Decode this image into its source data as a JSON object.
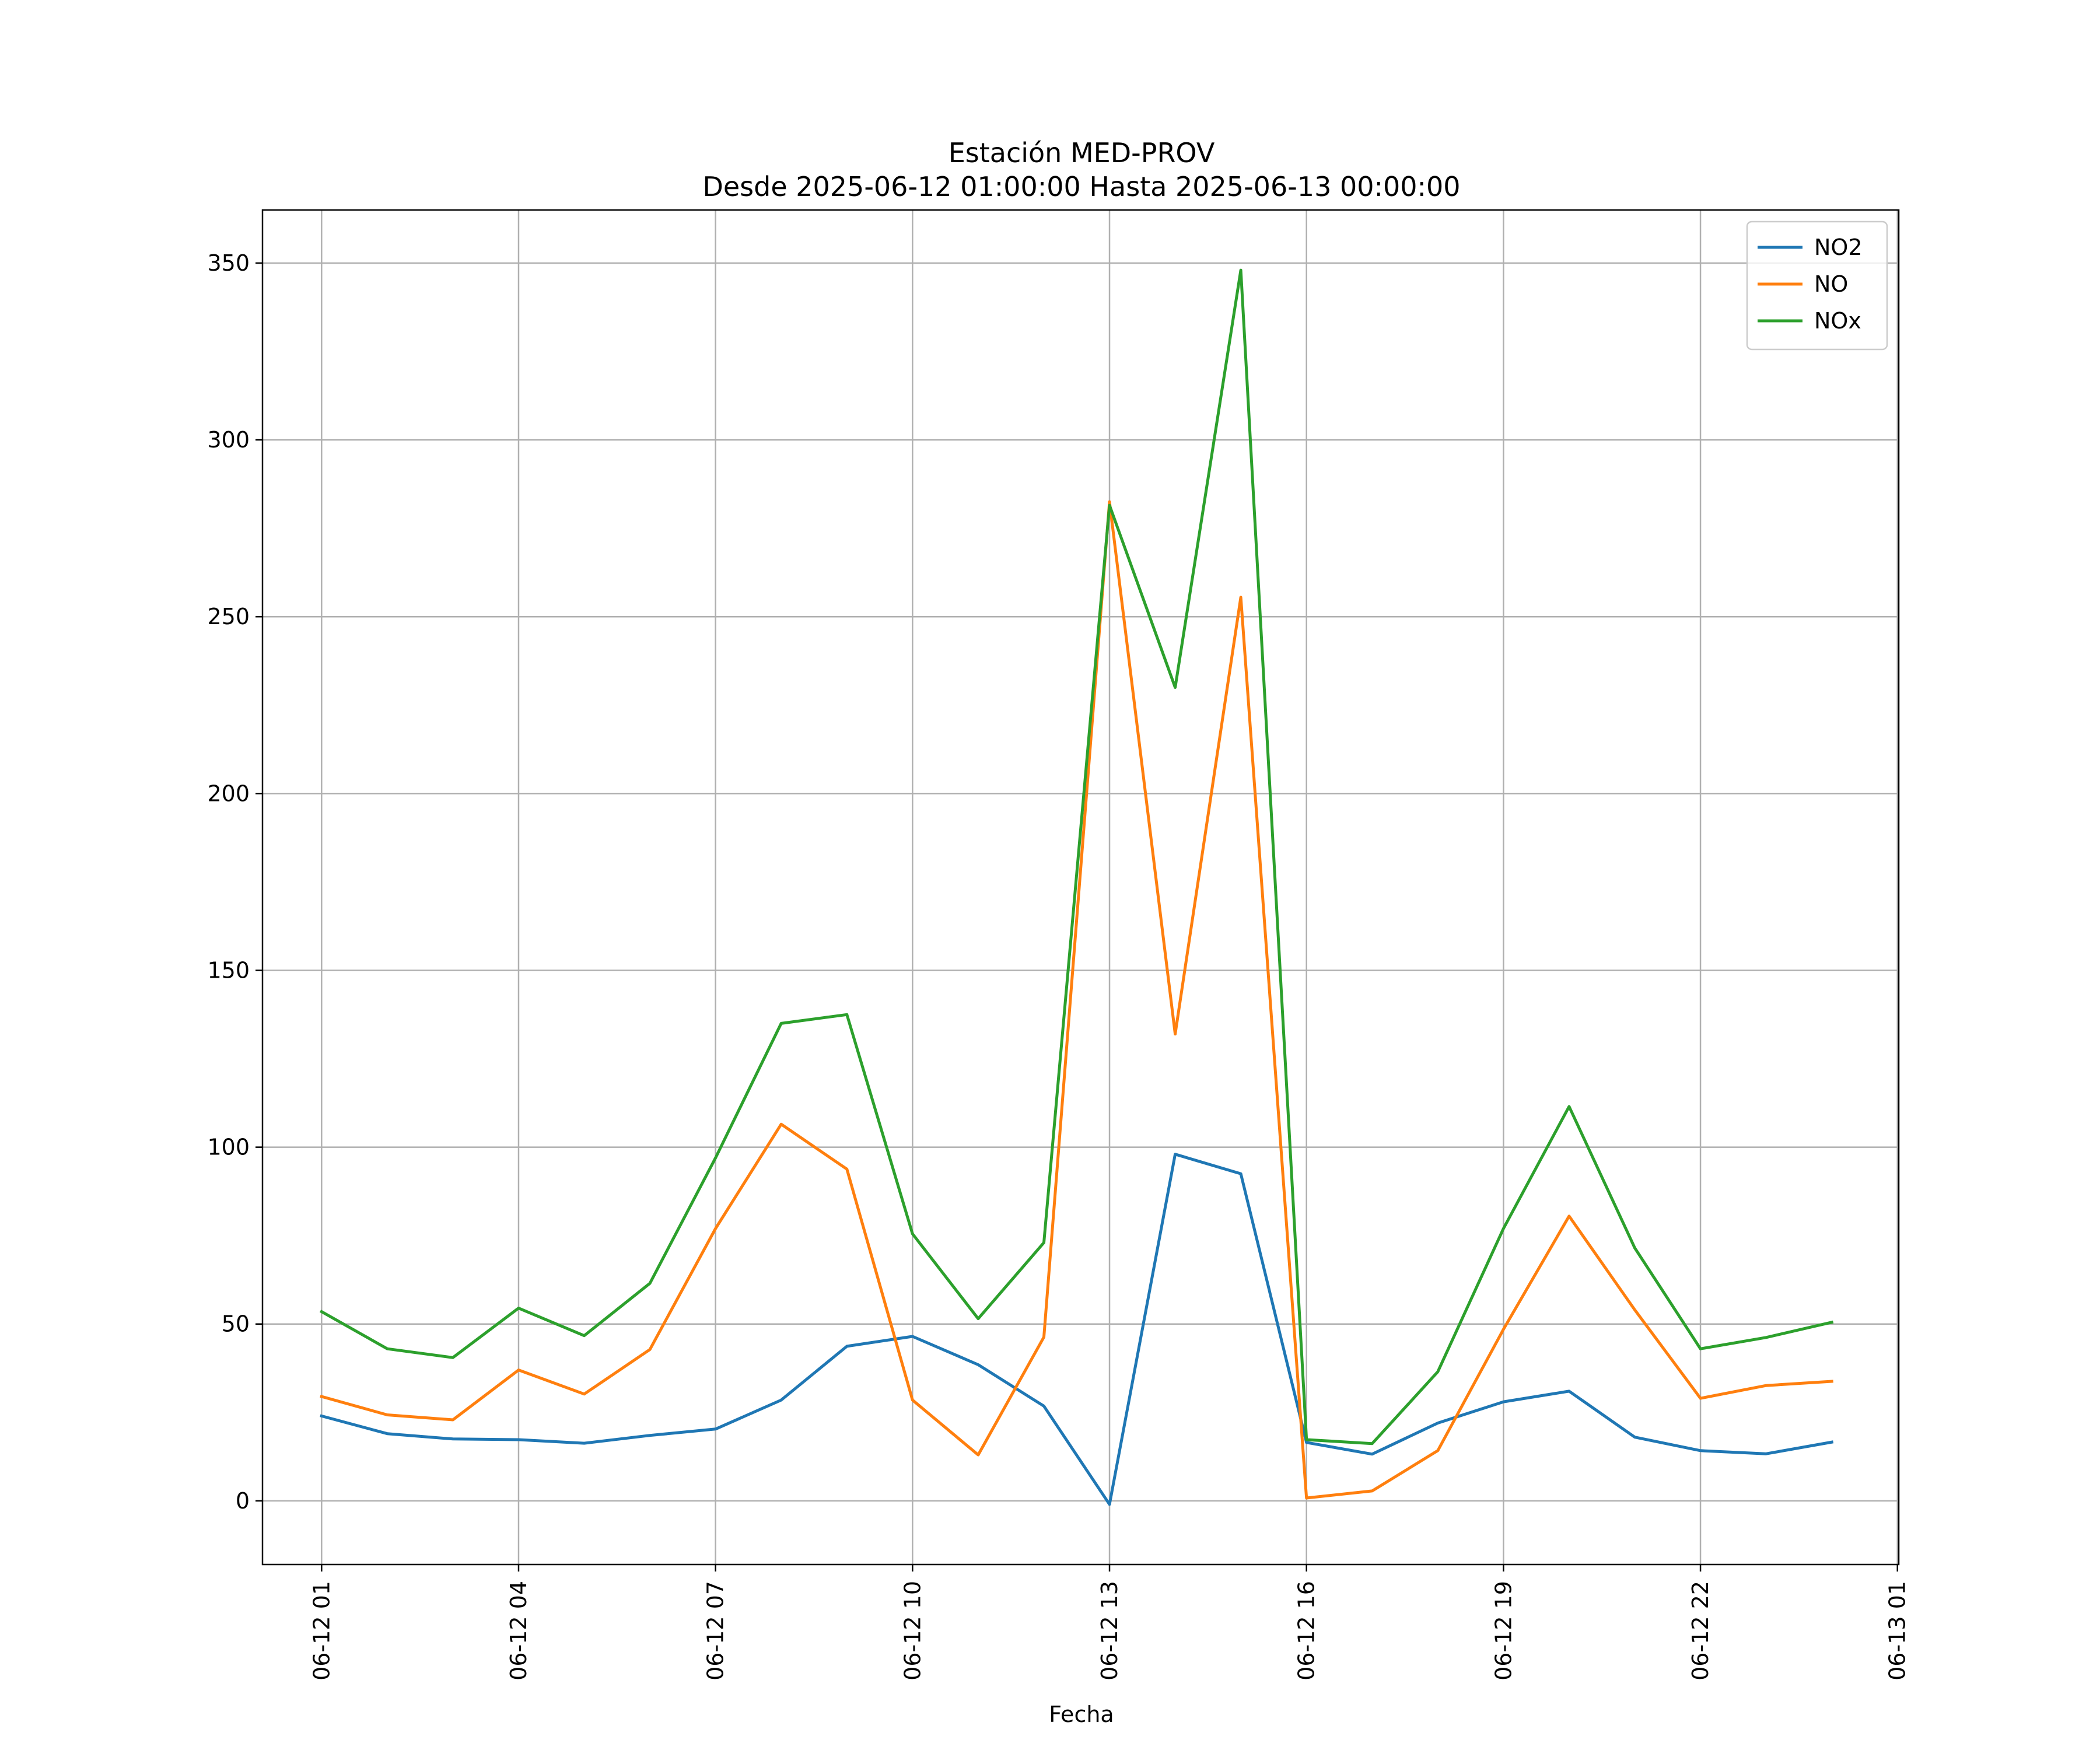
{
  "chart_data": {
    "type": "line",
    "title_line1": "Estación MED-PROV",
    "title_line2": "Desde 2025-06-12 01:00:00 Hasta 2025-06-13 00:00:00",
    "xlabel": "Fecha",
    "ylabel": "",
    "x": [
      "06-12 01",
      "06-12 02",
      "06-12 03",
      "06-12 04",
      "06-12 05",
      "06-12 06",
      "06-12 07",
      "06-12 08",
      "06-12 09",
      "06-12 10",
      "06-12 11",
      "06-12 12",
      "06-12 13",
      "06-12 14",
      "06-12 15",
      "06-12 16",
      "06-12 17",
      "06-12 18",
      "06-12 19",
      "06-12 20",
      "06-12 21",
      "06-12 22",
      "06-12 23",
      "06-13 00"
    ],
    "x_ticks": [
      "06-12 01",
      "06-12 04",
      "06-12 07",
      "06-12 10",
      "06-12 13",
      "06-12 16",
      "06-12 19",
      "06-12 22",
      "06-13 01"
    ],
    "x_range": [
      "06-12 01",
      "06-13 01"
    ],
    "ylim": [
      -18,
      365
    ],
    "y_ticks": [
      0,
      50,
      100,
      150,
      200,
      250,
      300,
      350
    ],
    "grid": true,
    "legend_position": "top-right",
    "series": [
      {
        "name": "NO2",
        "color": "#1f77b4",
        "values": [
          24,
          19,
          17.5,
          17.3,
          16.3,
          18.5,
          20.3,
          28.5,
          43.7,
          46.5,
          38.5,
          26.8,
          -1,
          98,
          92.5,
          16.5,
          13.2,
          22,
          28,
          31,
          18,
          14.2,
          13.3,
          16.6
        ]
      },
      {
        "name": "NO",
        "color": "#ff7f0e",
        "values": [
          29.5,
          24.3,
          22.9,
          37,
          30.2,
          42.8,
          77,
          106.5,
          93.8,
          28.5,
          13,
          46.3,
          282.5,
          132,
          255.5,
          0.8,
          2.8,
          14.2,
          48.5,
          80.5,
          54,
          29,
          32.6,
          33.8
        ]
      },
      {
        "name": "NOx",
        "color": "#2ca02c",
        "values": [
          53.5,
          43,
          40.5,
          54.5,
          46.7,
          61.5,
          97,
          135,
          137.5,
          75.5,
          51.5,
          73,
          281.5,
          230,
          348,
          17.3,
          16.2,
          36.5,
          77,
          111.5,
          71.5,
          43,
          46.2,
          50.5
        ]
      }
    ]
  }
}
